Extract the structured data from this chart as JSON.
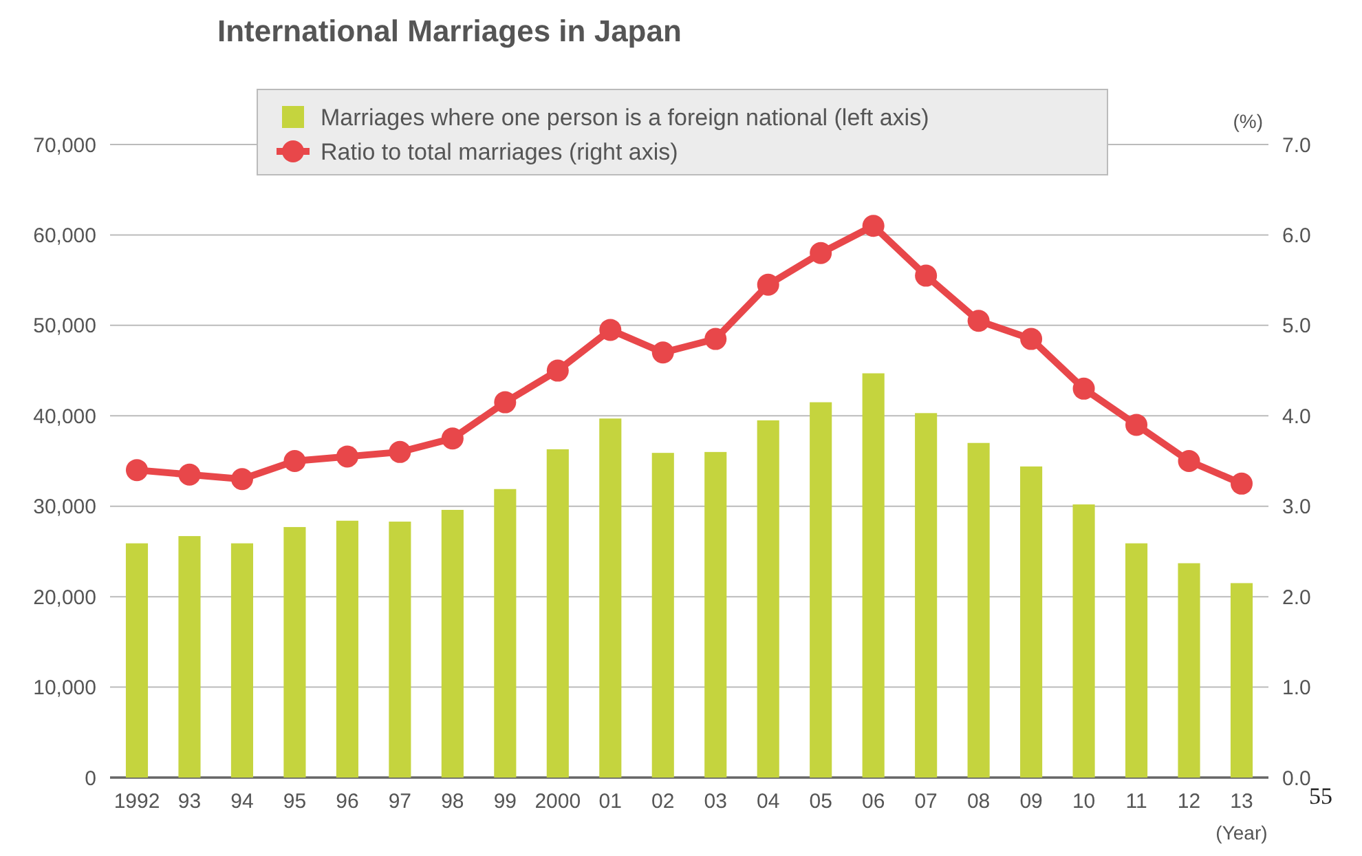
{
  "chart_data": {
    "type": "bar",
    "title": "International Marriages in Japan",
    "xlabel": "(Year)",
    "y2label": "(%)",
    "annotations": [
      "55"
    ],
    "categories": [
      "1992",
      "93",
      "94",
      "95",
      "96",
      "97",
      "98",
      "99",
      "2000",
      "01",
      "02",
      "03",
      "04",
      "05",
      "06",
      "07",
      "08",
      "09",
      "10",
      "11",
      "12",
      "13"
    ],
    "series": [
      {
        "name": "Marriages where one person is a foreign national (left axis)",
        "color": "#c5d43e",
        "values": [
          25900,
          26700,
          25900,
          27700,
          28400,
          28300,
          29600,
          31900,
          36300,
          39700,
          35900,
          36000,
          39500,
          41500,
          44700,
          40300,
          37000,
          34400,
          30200,
          25900,
          23700,
          21500
        ]
      },
      {
        "name": "Ratio to total marriages (right axis)",
        "type": "line",
        "axis": "y2",
        "color": "#e8474a",
        "marker": "circle",
        "values": [
          3.4,
          3.35,
          3.3,
          3.5,
          3.55,
          3.6,
          3.75,
          4.15,
          4.5,
          4.95,
          4.7,
          4.85,
          5.45,
          5.8,
          6.1,
          5.55,
          5.05,
          4.85,
          4.3,
          3.9,
          3.5,
          3.25
        ]
      }
    ],
    "ylim": [
      0,
      70000
    ],
    "yticks": [
      {
        "value": 0,
        "label": "0"
      },
      {
        "value": 10000,
        "label": "10,000"
      },
      {
        "value": 20000,
        "label": "20,000"
      },
      {
        "value": 30000,
        "label": "30,000"
      },
      {
        "value": 40000,
        "label": "40,000"
      },
      {
        "value": 50000,
        "label": "50,000"
      },
      {
        "value": 60000,
        "label": "60,000"
      },
      {
        "value": 70000,
        "label": "70,000"
      }
    ],
    "y2lim": [
      0,
      7
    ],
    "y2ticks": [
      {
        "value": 0,
        "label": "0.0"
      },
      {
        "value": 1,
        "label": "1.0"
      },
      {
        "value": 2,
        "label": "2.0"
      },
      {
        "value": 3,
        "label": "3.0"
      },
      {
        "value": 4,
        "label": "4.0"
      },
      {
        "value": 5,
        "label": "5.0"
      },
      {
        "value": 6,
        "label": "6.0"
      },
      {
        "value": 7,
        "label": "7.0"
      }
    ],
    "grid": "y",
    "legend": "top"
  }
}
